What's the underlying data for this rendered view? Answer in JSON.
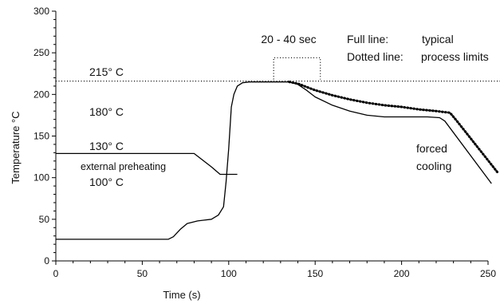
{
  "chart_data": {
    "type": "line",
    "xlabel": "Time (s)",
    "ylabel": "Temperature °C",
    "xlim": [
      0,
      250
    ],
    "ylim": [
      0,
      300
    ],
    "xticks": [
      0,
      50,
      100,
      150,
      200,
      250
    ],
    "yticks": [
      0,
      50,
      100,
      150,
      200,
      250,
      300
    ],
    "xtick_labels": [
      "0",
      "50",
      "100",
      "150",
      "200",
      "250"
    ],
    "ytick_labels": [
      "0",
      "50",
      "100",
      "150",
      "200",
      "250",
      "300"
    ],
    "grid": false,
    "series": [
      {
        "style": "solid",
        "points": [
          [
            0,
            26
          ],
          [
            65,
            26
          ],
          [
            68,
            29
          ],
          [
            72,
            38
          ],
          [
            76,
            45
          ],
          [
            82,
            48
          ],
          [
            90,
            50
          ],
          [
            94,
            55
          ],
          [
            97,
            65
          ],
          [
            98.5,
            95
          ],
          [
            100,
            135
          ],
          [
            101.5,
            185
          ],
          [
            103,
            200
          ],
          [
            105,
            210
          ],
          [
            108,
            214
          ],
          [
            112,
            215
          ],
          [
            135,
            215
          ],
          [
            140,
            212
          ],
          [
            145,
            205
          ],
          [
            150,
            197
          ],
          [
            160,
            187
          ],
          [
            170,
            180
          ],
          [
            180,
            175
          ],
          [
            190,
            173
          ],
          [
            200,
            173
          ],
          [
            215,
            173
          ],
          [
            222,
            172
          ],
          [
            225,
            168
          ],
          [
            252,
            93
          ]
        ]
      },
      {
        "style": "solid",
        "points": [
          [
            0,
            129
          ],
          [
            80,
            129
          ],
          [
            90,
            113
          ],
          [
            95,
            104
          ],
          [
            105,
            104
          ]
        ]
      },
      {
        "style": "dotted",
        "points": [
          [
            135,
            215
          ],
          [
            140,
            213
          ],
          [
            150,
            205
          ],
          [
            160,
            199
          ],
          [
            170,
            194
          ],
          [
            180,
            190
          ],
          [
            190,
            187
          ],
          [
            200,
            185
          ],
          [
            210,
            182
          ],
          [
            220,
            180
          ],
          [
            228,
            178
          ],
          [
            232,
            168
          ],
          [
            256,
            105
          ]
        ]
      },
      {
        "style": "dotted-thin",
        "points": [
          [
            0,
            216
          ],
          [
            262,
            216
          ]
        ]
      }
    ],
    "bracket": {
      "x_from": 126,
      "x_to": 153,
      "y_base": 218,
      "y_top": 244,
      "label": "20 - 40 sec"
    },
    "annotations": {
      "t215": "215° C",
      "t180": "180° C",
      "t130": "130° C",
      "t100": "100° C",
      "preheat": "external preheating",
      "forced1": "forced",
      "forced2": "cooling",
      "legend1_key": "Full line:",
      "legend1_val": "typical",
      "legend2_key": "Dotted line:",
      "legend2_val": "process limits"
    }
  }
}
